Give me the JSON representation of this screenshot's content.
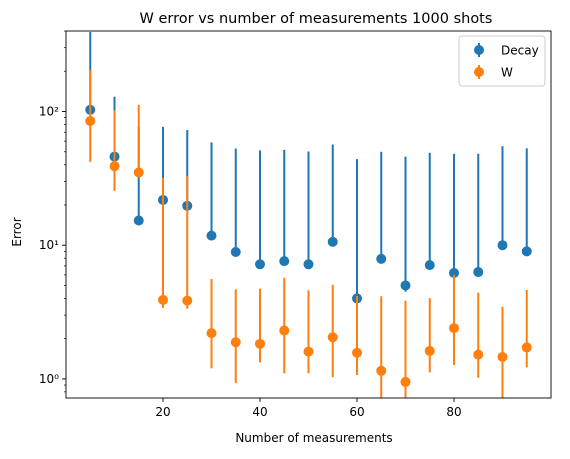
{
  "chart_data": {
    "type": "scatter",
    "title": "W error vs number of measurements 1000 shots",
    "xlabel": "Number of measurements",
    "ylabel": "Error",
    "xlim": [
      0,
      100
    ],
    "ylim": [
      0.72,
      400
    ],
    "yscale": "log",
    "xticks": [
      20,
      40,
      60,
      80
    ],
    "xtick_labels": [
      "20",
      "40",
      "60",
      "80"
    ],
    "yticks": [
      1,
      10,
      100
    ],
    "ytick_labels": [
      "10⁰",
      "10¹",
      "10²"
    ],
    "grid": false,
    "legend": "top-right",
    "x": [
      5,
      10,
      15,
      20,
      25,
      30,
      35,
      40,
      45,
      50,
      55,
      60,
      65,
      70,
      75,
      80,
      85,
      90,
      95
    ],
    "series": [
      {
        "name": "Decay",
        "color": "#1f77b4",
        "values": [
          103,
          46,
          15.3,
          21.8,
          19.7,
          11.8,
          8.9,
          7.2,
          7.6,
          7.2,
          10.6,
          4.0,
          7.9,
          5.0,
          7.1,
          6.2,
          6.3,
          10.0,
          9.0
        ],
        "err_low": [
          0.5,
          9.2,
          0.5,
          0.5,
          0.5,
          0.5,
          0.5,
          0.5,
          0.5,
          0.5,
          0.5,
          0.5,
          0.5,
          0.5,
          0.5,
          0.5,
          0.5,
          0.5,
          0.5
        ],
        "err_high": [
          290,
          83,
          62,
          55,
          53,
          47,
          44,
          44,
          44,
          43,
          46,
          40,
          42,
          41,
          42,
          42,
          42,
          45,
          44
        ]
      },
      {
        "name": "W",
        "color": "#ff7f0e",
        "values": [
          85,
          39,
          35,
          3.9,
          3.85,
          2.2,
          1.88,
          1.83,
          2.3,
          1.6,
          2.05,
          1.57,
          1.15,
          0.95,
          1.62,
          2.4,
          1.52,
          1.46,
          1.72
        ],
        "err_low": [
          43,
          13.5,
          0.5,
          0.5,
          0.5,
          1.0,
          0.95,
          0.5,
          1.2,
          0.5,
          1.02,
          0.5,
          0.5,
          0.5,
          0.5,
          1.13,
          0.5,
          0.8,
          0.5
        ],
        "err_high": [
          120,
          63,
          77,
          28,
          29,
          3.4,
          2.8,
          2.9,
          3.4,
          3.0,
          3.0,
          2.6,
          3.0,
          2.9,
          2.4,
          3.6,
          2.9,
          2.0,
          2.9
        ]
      }
    ]
  }
}
